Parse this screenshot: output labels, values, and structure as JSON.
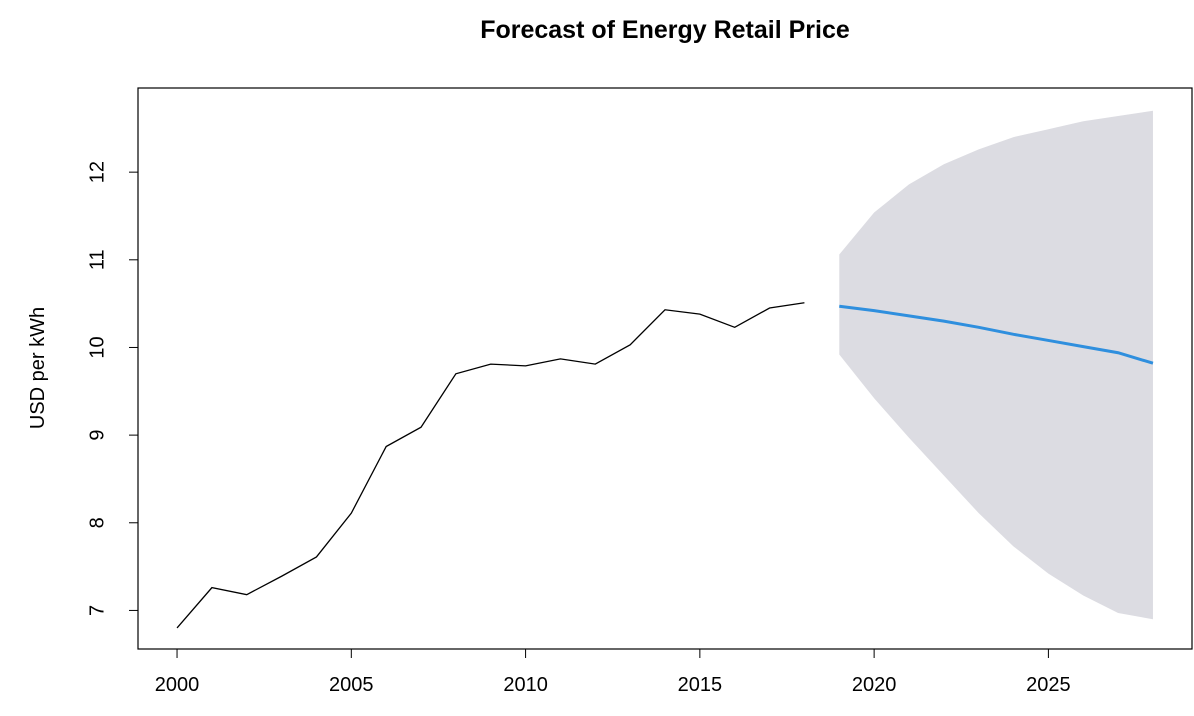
{
  "chart_data": {
    "type": "line",
    "title": "Forecast of Energy Retail Price",
    "y_label": "USD per kWh",
    "xlim": [
      1998.88,
      2029.12
    ],
    "ylim": [
      6.56,
      12.96
    ],
    "xticks": [
      2000,
      2005,
      2010,
      2015,
      2020,
      2025
    ],
    "yticks": [
      7,
      8,
      9,
      10,
      11,
      12
    ],
    "history": {
      "color": "#000000",
      "x": [
        2000,
        2001,
        2002,
        2003,
        2004,
        2005,
        2006,
        2007,
        2008,
        2009,
        2010,
        2011,
        2012,
        2013,
        2014,
        2015,
        2016,
        2017,
        2018
      ],
      "values": [
        6.8,
        7.26,
        7.18,
        7.39,
        7.61,
        8.11,
        8.87,
        9.09,
        9.7,
        9.81,
        9.79,
        9.87,
        9.81,
        10.03,
        10.43,
        10.38,
        10.23,
        10.45,
        10.51
      ]
    },
    "forecast": {
      "color": "#2f8fde",
      "x": [
        2019,
        2020,
        2021,
        2022,
        2023,
        2024,
        2025,
        2026,
        2027,
        2028
      ],
      "values": [
        10.47,
        10.42,
        10.36,
        10.3,
        10.23,
        10.15,
        10.08,
        10.01,
        9.94,
        9.82
      ]
    },
    "interval": {
      "color": "#dcdce2",
      "x": [
        2019,
        2020,
        2021,
        2022,
        2023,
        2024,
        2025,
        2026,
        2027,
        2028
      ],
      "lower": [
        9.92,
        9.42,
        8.97,
        8.54,
        8.11,
        7.73,
        7.42,
        7.17,
        6.97,
        6.9
      ],
      "upper": [
        11.06,
        11.54,
        11.86,
        12.09,
        12.26,
        12.4,
        12.49,
        12.58,
        12.64,
        12.7
      ]
    }
  }
}
